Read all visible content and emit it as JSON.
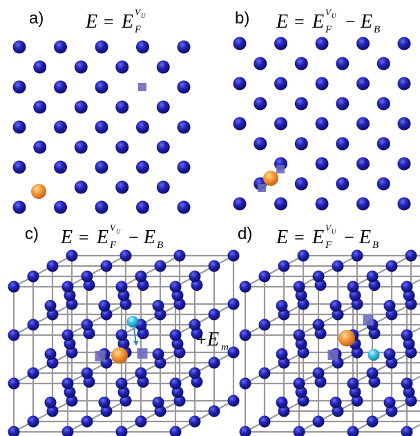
{
  "colors": {
    "lattice_atom": "#1a1a9e",
    "solute_atom": "#f0902a",
    "interstitial_atom": "#2fb8e0",
    "vacancy": "#6c6cbe",
    "grid": "#9a9a9a"
  },
  "panels": [
    {
      "label": "a)",
      "equation": {
        "lhs": "E",
        "eq": "=",
        "term": "E",
        "term_sub": "F",
        "term_sup": "V",
        "term_sup_sub": "U",
        "minus": "",
        "extra": "",
        "extra_sub": ""
      }
    },
    {
      "label": "b)",
      "equation": {
        "lhs": "E",
        "eq": "=",
        "term": "E",
        "term_sub": "F",
        "term_sup": "V",
        "term_sup_sub": "U",
        "minus": "−",
        "extra": "E",
        "extra_sub": "B"
      }
    },
    {
      "label": "c)",
      "equation": {
        "lhs": "E",
        "eq": "=",
        "term": "E",
        "term_sub": "F",
        "term_sup": "V",
        "term_sup_sub": "U",
        "minus": "−",
        "extra": "E",
        "extra_sub": "B"
      }
    },
    {
      "label": "d)",
      "equation": {
        "lhs": "E",
        "eq": "=",
        "term": "E",
        "term_sub": "F",
        "term_sup": "V",
        "term_sup_sub": "U",
        "minus": "−",
        "extra": "E",
        "extra_sub": "B"
      }
    }
  ],
  "migration_term": {
    "plus": "+",
    "symbol": "E",
    "sub": "m"
  },
  "icons": [
    "lattice-atom-icon",
    "solute-atom-icon",
    "interstitial-atom-icon",
    "vacancy-icon",
    "migration-arrow-icon"
  ]
}
